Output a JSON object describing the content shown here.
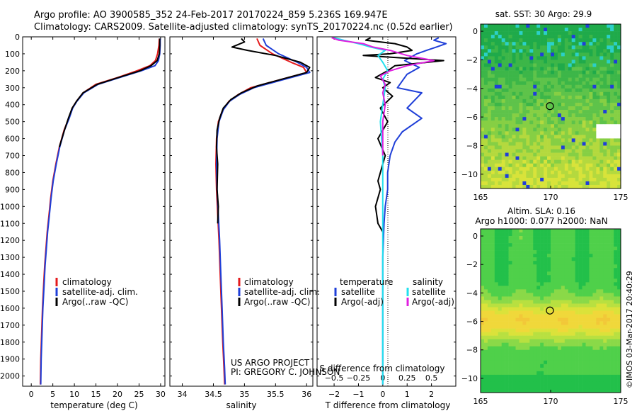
{
  "header": {
    "line1": "Argo profile: AO 3900585_352 24-Feb-2017 20170224_859 5.236S 169.947E",
    "line2": "Climatology: CARS2009. Satellite-adjusted climatology: synTS_20170224.nc (0.52d earlier)"
  },
  "colors": {
    "climatology": "#e41a1c",
    "satellite": "#1f3fd8",
    "argo": "#000000",
    "sal_satellite": "#22e0ee",
    "sal_argo": "#e020e0"
  },
  "chart_data": [
    {
      "type": "line",
      "title": "",
      "xlabel": "temperature (deg C)",
      "ylabel": "",
      "xlim": [
        -2,
        31
      ],
      "ylim": [
        2060,
        0
      ],
      "x_ticks": [
        0,
        5,
        10,
        15,
        20,
        25,
        30
      ],
      "y_ticks": [
        0,
        100,
        200,
        300,
        400,
        500,
        600,
        700,
        800,
        900,
        1000,
        1100,
        1200,
        1300,
        1400,
        1500,
        1600,
        1700,
        1800,
        1900,
        2000
      ],
      "legend": [
        "climatology",
        "satellite-adj. clim.",
        "Argo(..raw -QC)"
      ],
      "series": [
        {
          "name": "climatology",
          "x": [
            29.7,
            29.6,
            29.3,
            28.8,
            27.5,
            24.5,
            20,
            15,
            12,
            10.5,
            9.5,
            8.7,
            7.6,
            6.5,
            5.7,
            5.0,
            4.5,
            4.1,
            3.7,
            3.4,
            3.1,
            2.9,
            2.6,
            2.4,
            2.2,
            2.1
          ],
          "y": [
            10,
            50,
            100,
            140,
            170,
            200,
            240,
            280,
            330,
            380,
            420,
            480,
            550,
            650,
            750,
            850,
            950,
            1050,
            1150,
            1250,
            1350,
            1450,
            1600,
            1750,
            1900,
            2050
          ]
        },
        {
          "name": "satellite-adj. clim.",
          "x": [
            29.9,
            29.9,
            29.8,
            29.5,
            28.7,
            25.5,
            20.5,
            15.5,
            12.2,
            10.6,
            9.6,
            8.8,
            7.7,
            6.6,
            5.8,
            5.1,
            4.6,
            4.2,
            3.8,
            3.5,
            3.2,
            3.0,
            2.7,
            2.5,
            2.3,
            2.2
          ],
          "y": [
            10,
            50,
            100,
            140,
            170,
            200,
            240,
            280,
            330,
            380,
            420,
            480,
            550,
            650,
            750,
            850,
            950,
            1050,
            1150,
            1250,
            1350,
            1450,
            1600,
            1750,
            1900,
            2050
          ]
        },
        {
          "name": "Argo(..raw -QC)",
          "x": [
            29.8,
            29.8,
            29.7,
            29.2,
            27.8,
            25.2,
            20.2,
            15.3,
            12.0,
            10.5,
            9.5,
            8.6,
            7.7,
            6.5
          ],
          "y": [
            10,
            50,
            100,
            140,
            170,
            200,
            240,
            280,
            330,
            380,
            420,
            480,
            550,
            650
          ]
        }
      ]
    },
    {
      "type": "line",
      "title": "",
      "xlabel": "salinity",
      "ylabel": "",
      "xlim": [
        33.8,
        36.1
      ],
      "ylim": [
        2060,
        0
      ],
      "x_ticks": [
        34,
        34.5,
        35,
        35.5,
        36
      ],
      "legend": [
        "climatology",
        "satellite-adj. clim.",
        "Argo(..raw -QC)"
      ],
      "annotation": [
        "US ARGO PROJECT",
        "PI: GREGORY C. JOHNSON"
      ],
      "series": [
        {
          "name": "climatology",
          "x": [
            35.2,
            35.25,
            35.45,
            35.75,
            35.95,
            36.0,
            35.5,
            35.1,
            34.9,
            34.75,
            34.65,
            34.58,
            34.55,
            34.54,
            34.55,
            34.57,
            34.59,
            34.61,
            34.63,
            34.65,
            34.67,
            34.68
          ],
          "y": [
            10,
            50,
            100,
            150,
            180,
            210,
            260,
            300,
            340,
            380,
            430,
            500,
            600,
            750,
            900,
            1050,
            1200,
            1400,
            1600,
            1800,
            1950,
            2050
          ]
        },
        {
          "name": "satellite-adj. clim.",
          "x": [
            35.3,
            35.35,
            35.55,
            35.85,
            36.0,
            36.05,
            35.55,
            35.15,
            34.92,
            34.76,
            34.66,
            34.59,
            34.56,
            34.55,
            34.56,
            34.58,
            34.6,
            34.62,
            34.64,
            34.66,
            34.68,
            34.69
          ],
          "y": [
            10,
            50,
            100,
            150,
            180,
            210,
            260,
            300,
            340,
            380,
            430,
            500,
            600,
            750,
            900,
            1050,
            1200,
            1400,
            1600,
            1800,
            1950,
            2050
          ]
        },
        {
          "name": "Argo(..raw -QC)",
          "x": [
            34.95,
            35.0,
            34.8,
            35.05,
            35.5,
            35.9,
            36.05,
            36.0,
            35.6,
            35.2,
            34.95,
            34.78,
            34.66,
            34.6,
            34.56,
            34.55,
            34.57,
            34.56,
            34.58,
            34.57
          ],
          "y": [
            10,
            30,
            60,
            80,
            110,
            150,
            180,
            210,
            250,
            290,
            330,
            370,
            420,
            480,
            550,
            650,
            750,
            900,
            1000,
            1100
          ]
        }
      ]
    },
    {
      "type": "line",
      "title": "",
      "xlabel": "T difference from climatology",
      "xlabel2": "S difference from climatology",
      "ylabel": "",
      "xlim": [
        -2.7,
        3.0
      ],
      "ylim": [
        2060,
        0
      ],
      "x_ticks": [
        -2,
        -1,
        0,
        1,
        2
      ],
      "x_tick_labels": [
        "−2",
        "−1",
        "0",
        "1",
        "2"
      ],
      "top_ticks": [
        -2,
        -1,
        0,
        1,
        2
      ],
      "top_tick_labels": [
        "−0.5",
        "−0.25",
        "0",
        "0.25",
        "0.5"
      ],
      "legend": [
        "temperature",
        "satellite",
        "Argo(-adj)",
        "salinity",
        "satellite",
        "Argo(-adj)"
      ],
      "series": [
        {
          "name": "temperature satellite",
          "x": [
            2.3,
            2.1,
            2.6,
            2.2,
            1.8,
            1.4,
            0.9,
            1.5,
            1.0,
            0.8,
            0.6,
            1.6,
            1.4,
            1.0,
            1.6,
            0.8,
            0.5,
            0.3,
            0.2,
            0.2,
            0.1,
            0.05,
            0.0,
            0.0,
            0.0,
            0.0
          ],
          "y": [
            5,
            20,
            40,
            60,
            80,
            100,
            140,
            180,
            220,
            260,
            300,
            330,
            360,
            420,
            480,
            560,
            620,
            700,
            800,
            900,
            1000,
            1100,
            1300,
            1500,
            1800,
            2050
          ]
        },
        {
          "name": "temperature Argo(-adj)",
          "x": [
            -0.5,
            -0.7,
            0.5,
            1.0,
            1.2,
            0.3,
            -0.8,
            2.5,
            0.5,
            0.2,
            -0.3,
            0.3,
            0.0,
            0.4,
            -0.1,
            0.2,
            -0.2,
            0.1,
            -0.1,
            -0.2,
            -0.1,
            -0.3,
            -0.2,
            0.0
          ],
          "y": [
            5,
            20,
            40,
            60,
            80,
            100,
            110,
            140,
            170,
            200,
            240,
            270,
            300,
            350,
            420,
            500,
            600,
            700,
            800,
            850,
            900,
            1000,
            1100,
            1150
          ]
        },
        {
          "name": "salinity satellite",
          "x": [
            -2.0,
            -1.6,
            -1.0,
            -0.5,
            0.1,
            -0.2,
            0.0,
            0.2,
            0.0,
            0.1,
            0.0,
            -0.1,
            0.0,
            0.0,
            0.0,
            0.0,
            0.0
          ],
          "y": [
            5,
            20,
            40,
            60,
            80,
            110,
            150,
            200,
            250,
            300,
            400,
            500,
            700,
            900,
            1200,
            1600,
            2050
          ]
        },
        {
          "name": "salinity Argo(-adj)",
          "x": [
            -2.1,
            -1.8,
            -0.8,
            -0.4,
            0.3,
            1.0,
            2.1,
            1.0,
            0.3,
            -0.1,
            0.1,
            0.0,
            0.1,
            0.0,
            0.0,
            0.0
          ],
          "y": [
            5,
            20,
            40,
            60,
            80,
            110,
            140,
            170,
            200,
            230,
            280,
            330,
            400,
            500,
            600,
            700
          ]
        }
      ]
    },
    {
      "type": "heatmap",
      "title": "sat. SST: 30 Argo: 29.9",
      "xlim": [
        165,
        175
      ],
      "ylim": [
        -11,
        0.5
      ],
      "x_ticks": [
        165,
        170,
        175
      ],
      "y_ticks": [
        0,
        -2,
        -4,
        -6,
        -8,
        -10
      ],
      "marker": {
        "lon": 169.947,
        "lat": -5.236
      }
    },
    {
      "type": "heatmap",
      "title": "Altim. SLA: 0.16",
      "subtitle": "Argo h1000: 0.077 h2000: NaN",
      "xlim": [
        165,
        175
      ],
      "ylim": [
        -11,
        0.5
      ],
      "x_ticks": [
        165,
        170,
        175
      ],
      "y_ticks": [
        0,
        -2,
        -4,
        -6,
        -8,
        -10
      ],
      "marker": {
        "lon": 169.947,
        "lat": -5.236
      }
    }
  ],
  "footer": {
    "stamp": "©IMOS 03-Mar-2017 20:40:29"
  }
}
